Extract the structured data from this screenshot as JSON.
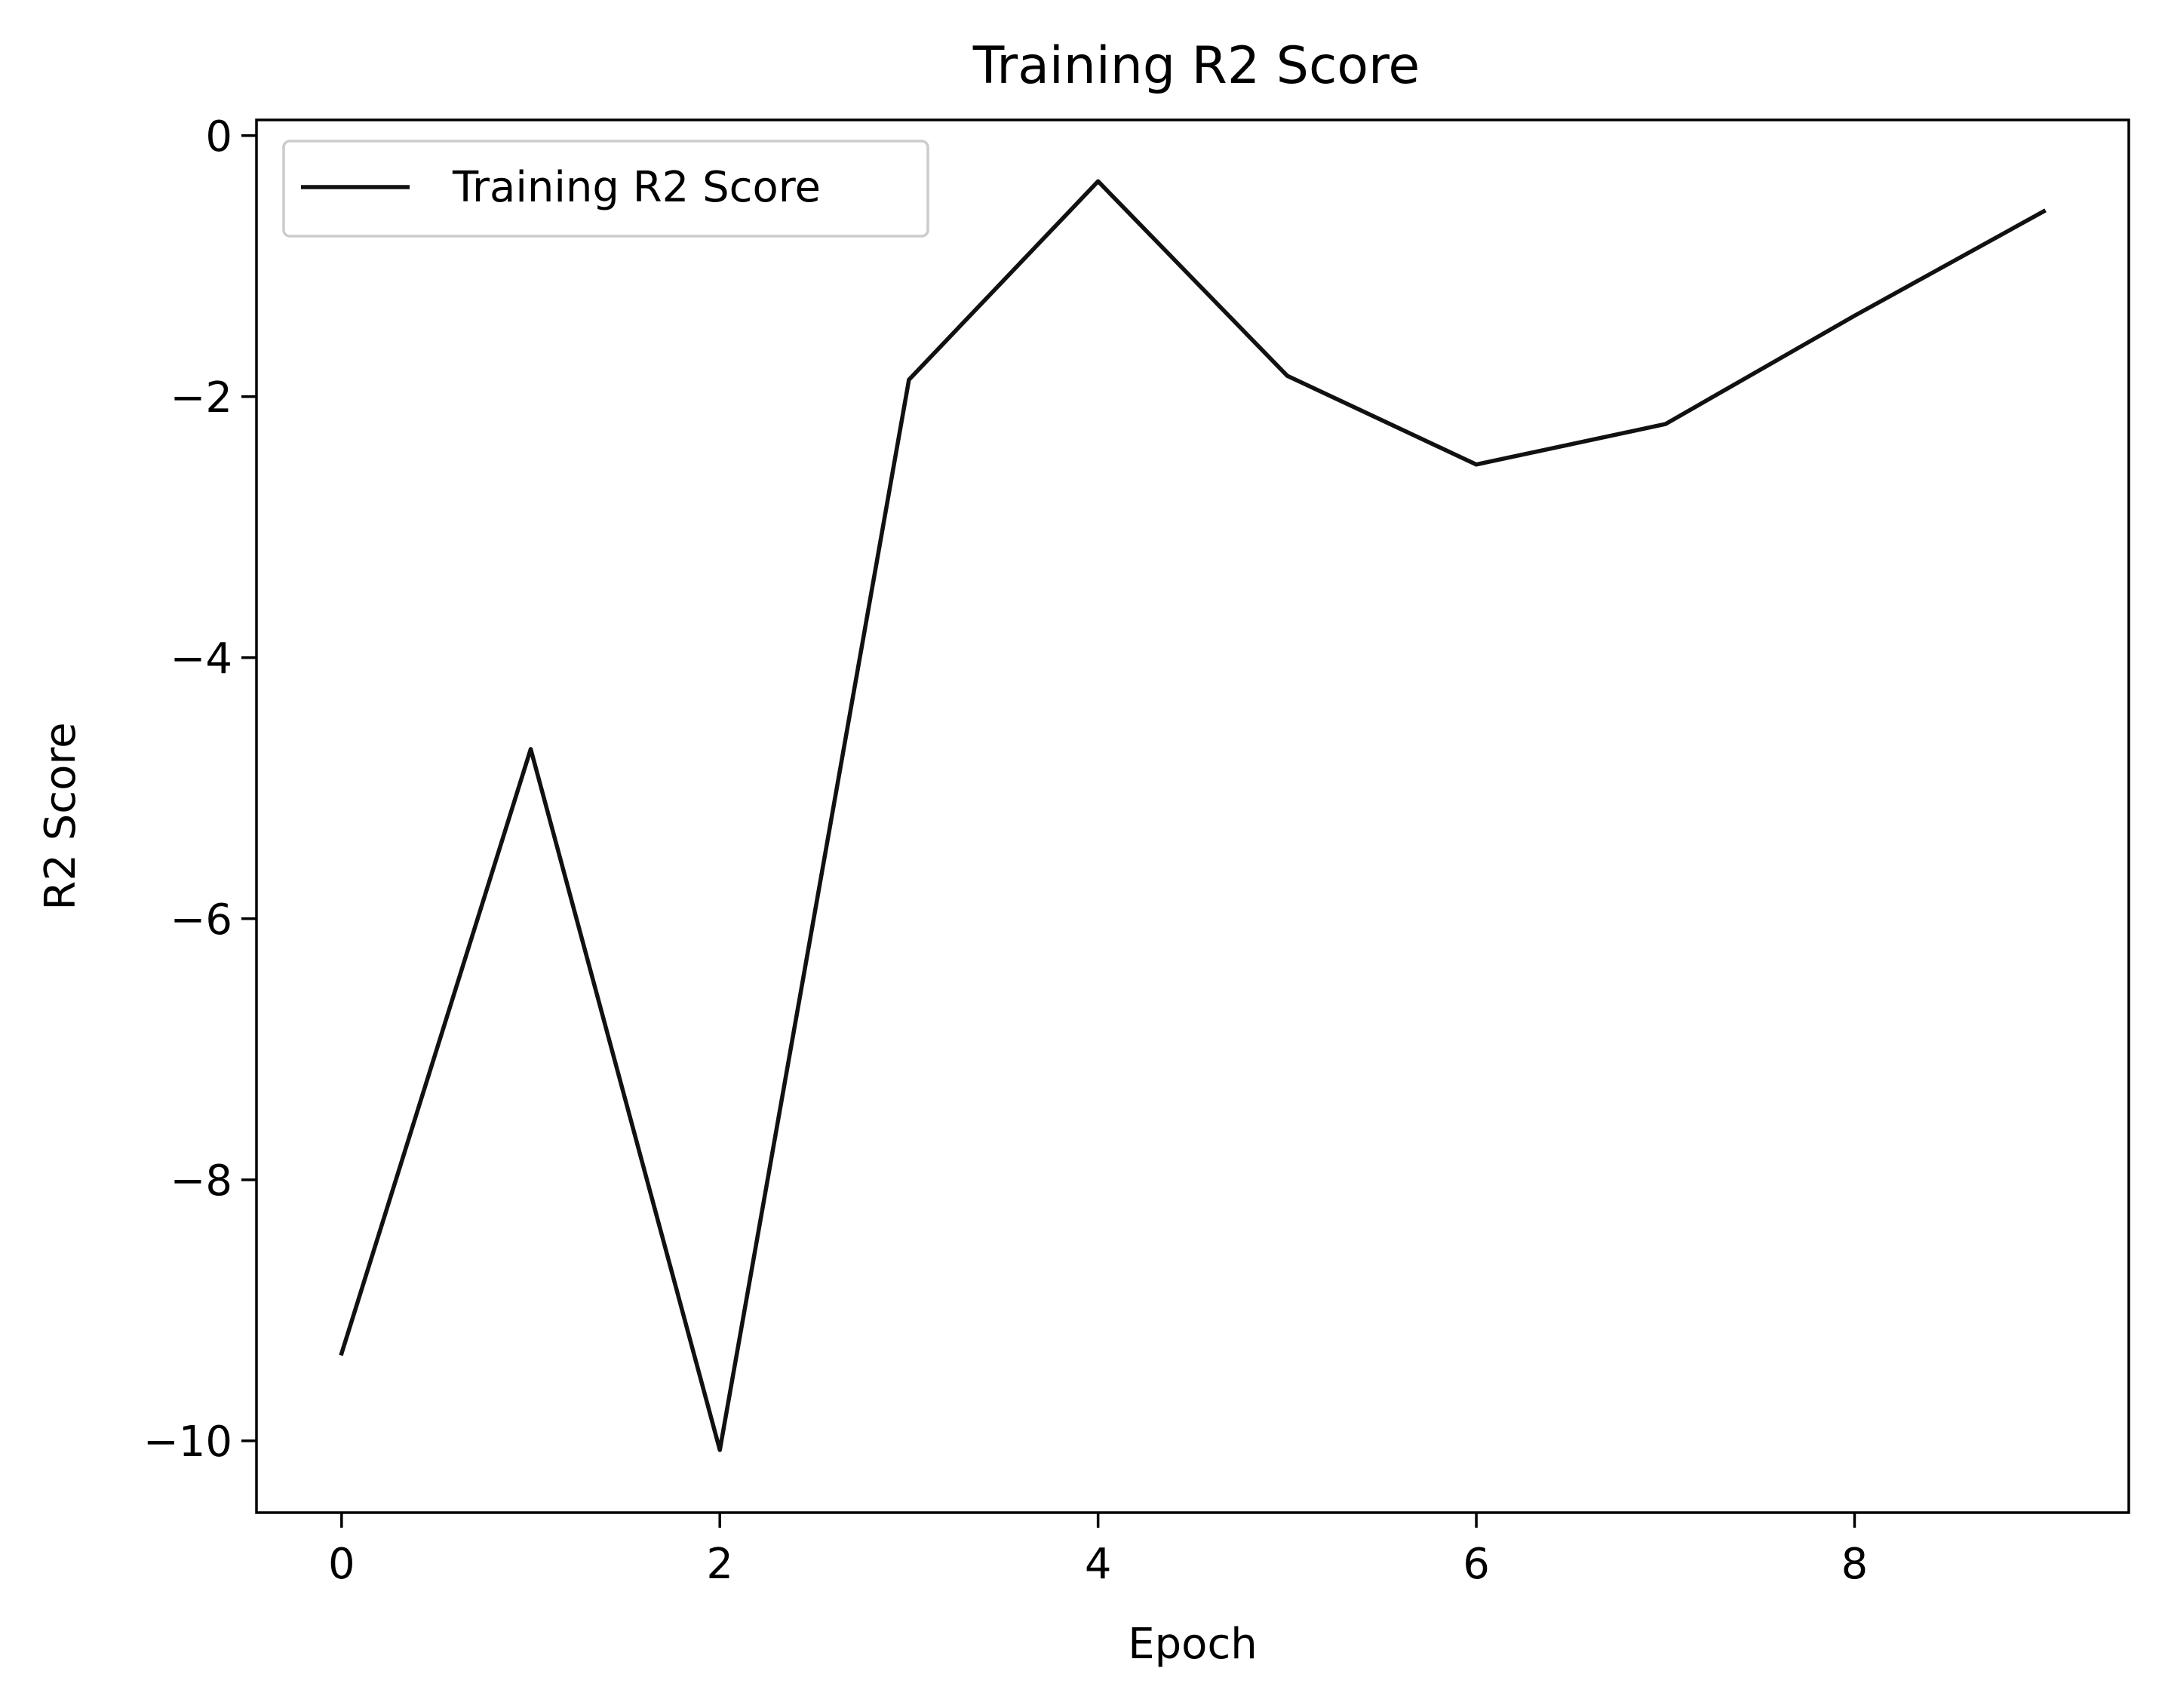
{
  "chart_data": {
    "type": "line",
    "title": "Training R2 Score",
    "xlabel": "Epoch",
    "ylabel": "R2 Score",
    "xlim": [
      -0.45,
      9.45
    ],
    "ylim": [
      -10.55,
      0.12
    ],
    "grid": false,
    "legend_position": "upper left",
    "x_ticks": [
      0,
      2,
      4,
      6,
      8
    ],
    "x_tick_labels": [
      "0",
      "2",
      "4",
      "6",
      "8"
    ],
    "y_ticks": [
      0,
      -2,
      -4,
      -6,
      -8,
      -10
    ],
    "y_tick_labels": [
      "0",
      "−2",
      "−4",
      "−6",
      "−8",
      "−10"
    ],
    "x": [
      0,
      1,
      2,
      3,
      4,
      5,
      6,
      7,
      8,
      9
    ],
    "series": [
      {
        "name": "Training R2 Score",
        "color": "#111111",
        "values": [
          -9.33,
          -4.7,
          -10.07,
          -1.87,
          -0.35,
          -1.84,
          -2.52,
          -2.21,
          -1.38,
          -0.58
        ]
      }
    ]
  }
}
